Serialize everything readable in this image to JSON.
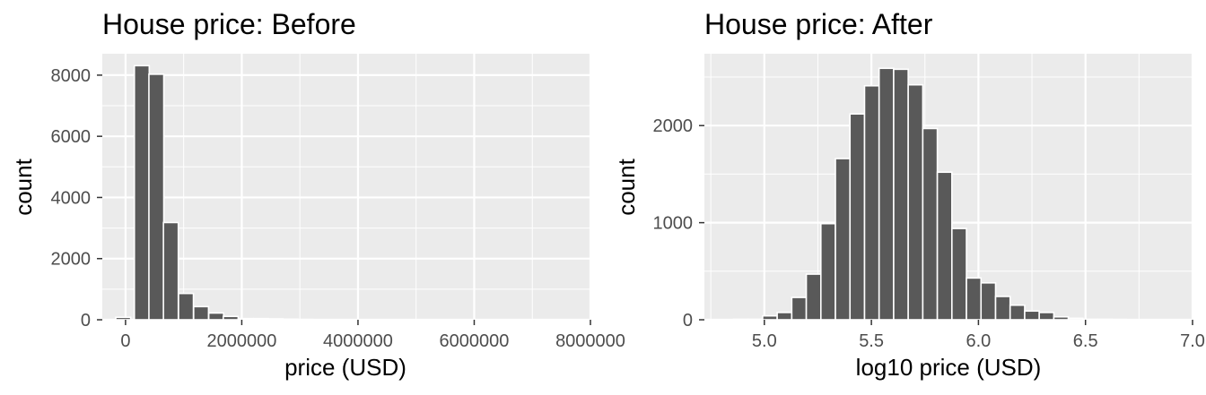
{
  "chart_data": [
    {
      "type": "bar",
      "title": "House price: Before",
      "xlabel": "price (USD)",
      "ylabel": "count",
      "xlim": [
        -400000,
        8000000
      ],
      "ylim": [
        0,
        8700
      ],
      "x_ticks": [
        0,
        2000000,
        4000000,
        6000000,
        8000000
      ],
      "x_tick_labels": [
        "0",
        "2000000",
        "4000000",
        "6000000",
        "8000000"
      ],
      "y_ticks": [
        0,
        2000,
        4000,
        6000,
        8000
      ],
      "y_tick_labels": [
        "0",
        "2000",
        "4000",
        "6000",
        "8000"
      ],
      "grid": true,
      "bin_width": 256000,
      "bins": [
        {
          "x": -40000,
          "count": 80
        },
        {
          "x": 280000,
          "count": 8310
        },
        {
          "x": 530000,
          "count": 8030
        },
        {
          "x": 780000,
          "count": 3180
        },
        {
          "x": 1040000,
          "count": 860
        },
        {
          "x": 1300000,
          "count": 430
        },
        {
          "x": 1560000,
          "count": 220
        },
        {
          "x": 1810000,
          "count": 110
        },
        {
          "x": 2070000,
          "count": 40
        },
        {
          "x": 2330000,
          "count": 40
        },
        {
          "x": 2580000,
          "count": 30
        },
        {
          "x": 2840000,
          "count": 20
        },
        {
          "x": 3100000,
          "count": 10
        },
        {
          "x": 3350000,
          "count": 5
        },
        {
          "x": 3610000,
          "count": 5
        },
        {
          "x": 3870000,
          "count": 3
        },
        {
          "x": 4120000,
          "count": 3
        },
        {
          "x": 4380000,
          "count": 2
        },
        {
          "x": 4640000,
          "count": 2
        },
        {
          "x": 4890000,
          "count": 2
        },
        {
          "x": 5150000,
          "count": 1
        },
        {
          "x": 5410000,
          "count": 1
        },
        {
          "x": 5670000,
          "count": 1
        },
        {
          "x": 5920000,
          "count": 1
        },
        {
          "x": 6180000,
          "count": 1
        },
        {
          "x": 6440000,
          "count": 1
        },
        {
          "x": 6690000,
          "count": 1
        },
        {
          "x": 6950000,
          "count": 1
        },
        {
          "x": 7210000,
          "count": 1
        },
        {
          "x": 7460000,
          "count": 1
        },
        {
          "x": 7720000,
          "count": 1
        }
      ]
    },
    {
      "type": "bar",
      "title": "House price: After",
      "xlabel": "log10 price (USD)",
      "ylabel": "count",
      "xlim": [
        4.72,
        7.0
      ],
      "ylim": [
        0,
        2740
      ],
      "x_ticks": [
        5.0,
        5.5,
        6.0,
        6.5,
        7.0
      ],
      "x_tick_labels": [
        "5.0",
        "5.5",
        "6.0",
        "6.5",
        "7.0"
      ],
      "y_ticks": [
        0,
        1000,
        2000
      ],
      "y_tick_labels": [
        "0",
        "1000",
        "2000"
      ],
      "grid": true,
      "bin_width": 0.068,
      "bins": [
        {
          "x": 4.89,
          "count": 5
        },
        {
          "x": 4.96,
          "count": 5
        },
        {
          "x": 5.026,
          "count": 40
        },
        {
          "x": 5.094,
          "count": 75
        },
        {
          "x": 5.162,
          "count": 230
        },
        {
          "x": 5.23,
          "count": 470
        },
        {
          "x": 5.298,
          "count": 990
        },
        {
          "x": 5.366,
          "count": 1660
        },
        {
          "x": 5.434,
          "count": 2120
        },
        {
          "x": 5.502,
          "count": 2410
        },
        {
          "x": 5.57,
          "count": 2590
        },
        {
          "x": 5.638,
          "count": 2580
        },
        {
          "x": 5.706,
          "count": 2420
        },
        {
          "x": 5.774,
          "count": 1970
        },
        {
          "x": 5.842,
          "count": 1520
        },
        {
          "x": 5.91,
          "count": 940
        },
        {
          "x": 5.978,
          "count": 430
        },
        {
          "x": 6.046,
          "count": 380
        },
        {
          "x": 6.114,
          "count": 240
        },
        {
          "x": 6.182,
          "count": 150
        },
        {
          "x": 6.25,
          "count": 90
        },
        {
          "x": 6.318,
          "count": 75
        },
        {
          "x": 6.386,
          "count": 30
        },
        {
          "x": 6.454,
          "count": 15
        },
        {
          "x": 6.522,
          "count": 5
        },
        {
          "x": 6.59,
          "count": 5
        },
        {
          "x": 6.658,
          "count": 3
        },
        {
          "x": 6.726,
          "count": 2
        },
        {
          "x": 6.794,
          "count": 1
        },
        {
          "x": 6.862,
          "count": 1
        }
      ]
    }
  ],
  "style": {
    "panel_background": "#ebebeb",
    "grid_color": "#ffffff",
    "bar_fill": "#595959",
    "bar_outline": "#ffffff",
    "tick_color": "#333333"
  }
}
